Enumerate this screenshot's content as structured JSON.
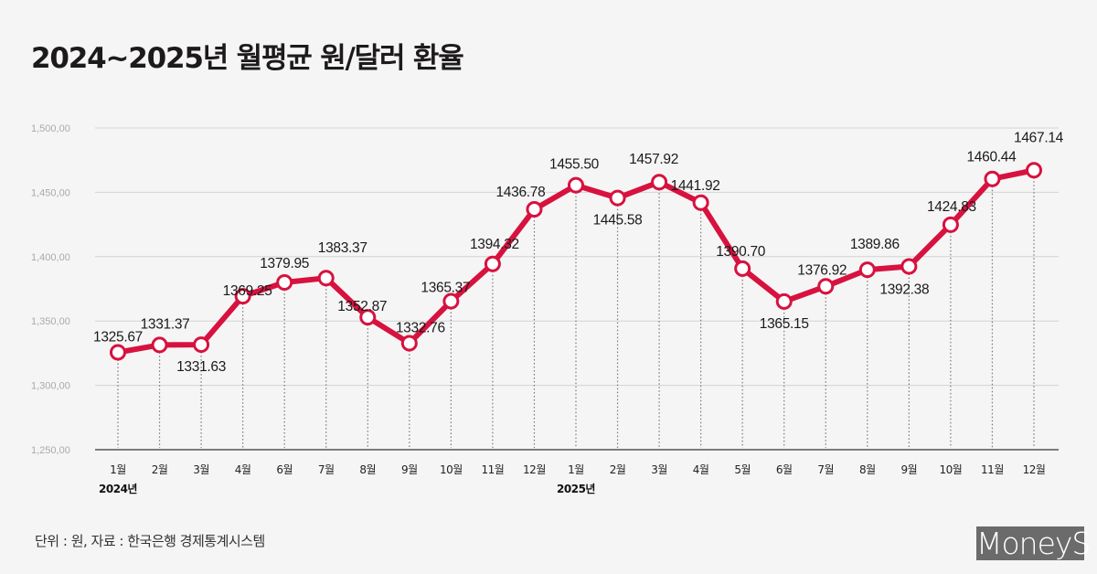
{
  "header": {
    "title": "2024~2025년 월평균 원/달러 환율"
  },
  "footer": {
    "source": "단위 : 원, 자료 : 한국은행 경제통계시스템",
    "logo_text": "MoneyS"
  },
  "colors": {
    "line": "#d7123f",
    "marker_fill": "#ffffff",
    "grid": "#d4d4d4",
    "axis": "#555555",
    "logo_bg": "#6b6b6b"
  },
  "chart_data": {
    "type": "line",
    "title": "2024~2025년 월평균 원/달러 환율",
    "xlabel": "",
    "ylabel": "",
    "ylim": [
      1250,
      1500
    ],
    "grid": true,
    "yticks": [
      1250,
      1300,
      1350,
      1400,
      1450,
      1500
    ],
    "ytick_labels": [
      "1,250,00",
      "1,300,00",
      "1,350,00",
      "1,400,00",
      "1,450,00",
      "1,500,00"
    ],
    "categories": [
      "1월",
      "2월",
      "3월",
      "4월",
      "6월",
      "7월",
      "8월",
      "9월",
      "10월",
      "11월",
      "12월",
      "1월",
      "2월",
      "3월",
      "4월",
      "5월",
      "6월",
      "7월",
      "8월",
      "9월",
      "10월",
      "11월",
      "12월"
    ],
    "year_labels": [
      {
        "text": "2024년",
        "index": 0
      },
      {
        "text": "2025년",
        "index": 11
      }
    ],
    "series": [
      {
        "name": "월평균 원/달러 환율",
        "values": [
          1325.67,
          1331.37,
          1331.63,
          1369.25,
          1379.95,
          1383.37,
          1352.87,
          1332.76,
          1365.37,
          1394.32,
          1436.78,
          1455.5,
          1445.58,
          1457.92,
          1441.92,
          1390.7,
          1365.15,
          1376.92,
          1389.86,
          1392.38,
          1424.83,
          1460.44,
          1467.14
        ],
        "labels": [
          "1325.67",
          "1331.37",
          "1331.63",
          "1369.25",
          "1379.95",
          "1383.37",
          "1352.87",
          "1332.76",
          "1365.37",
          "1394.32",
          "1436.78",
          "1455.50",
          "1445.58",
          "1457.92",
          "1441.92",
          "1390.70",
          "1365.15",
          "1376.92",
          "1389.86",
          "1392.38",
          "1424.83",
          "1460.44",
          "1467.14"
        ],
        "label_positions": [
          "above",
          "above",
          "below",
          "right",
          "above",
          "above",
          "above",
          "above",
          "above",
          "above",
          "above",
          "above",
          "below",
          "above",
          "above",
          "above",
          "below",
          "above",
          "above",
          "below",
          "above",
          "above",
          "above"
        ]
      }
    ]
  }
}
